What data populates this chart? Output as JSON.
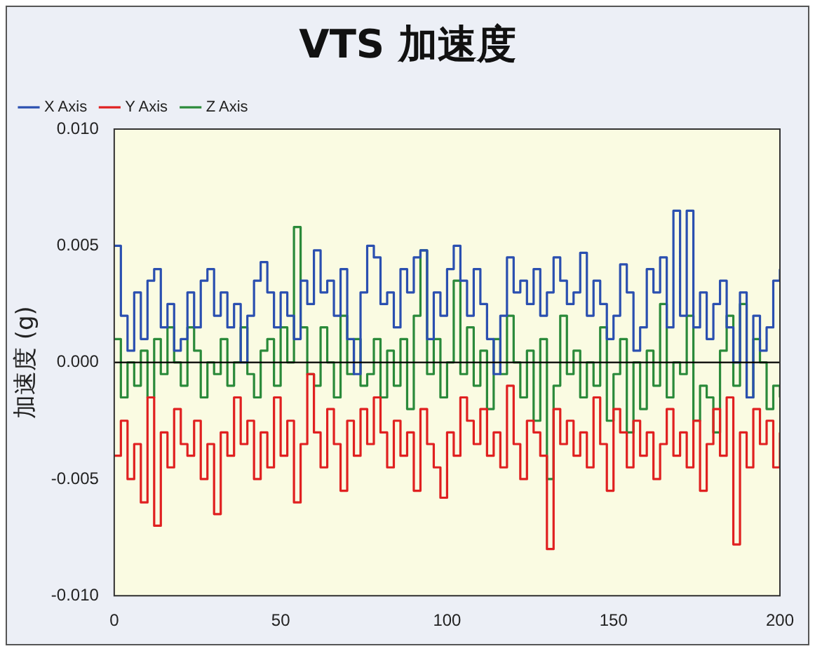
{
  "chart_data": {
    "type": "step",
    "title": "VTS 加速度",
    "ylabel": "加速度 (g)",
    "x": [
      0,
      2,
      4,
      6,
      8,
      10,
      12,
      14,
      16,
      18,
      20,
      22,
      24,
      26,
      28,
      30,
      32,
      34,
      36,
      38,
      40,
      42,
      44,
      46,
      48,
      50,
      52,
      54,
      56,
      58,
      60,
      62,
      64,
      66,
      68,
      70,
      72,
      74,
      76,
      78,
      80,
      82,
      84,
      86,
      88,
      90,
      92,
      94,
      96,
      98,
      100,
      102,
      104,
      106,
      108,
      110,
      112,
      114,
      116,
      118,
      120,
      122,
      124,
      126,
      128,
      130,
      132,
      134,
      136,
      138,
      140,
      142,
      144,
      146,
      148,
      150,
      152,
      154,
      156,
      158,
      160,
      162,
      164,
      166,
      168,
      170,
      172,
      174,
      176,
      178,
      180,
      182,
      184,
      186,
      188,
      190,
      192,
      194,
      196,
      198,
      200
    ],
    "series": [
      {
        "name": "X Axis",
        "color": "#2a4fb0",
        "values": [
          0.005,
          0.002,
          0.0005,
          0.003,
          0.001,
          0.0035,
          0.004,
          0.0015,
          0.0025,
          0.0005,
          0.001,
          0.003,
          0.0015,
          0.0035,
          0.004,
          0.002,
          0.003,
          0.0015,
          0.0025,
          0,
          0.002,
          0.0035,
          0.0043,
          0.003,
          0.0015,
          0.003,
          0.002,
          0.001,
          0.0035,
          0.0025,
          0.0048,
          0.003,
          0.0035,
          0.002,
          0.004,
          0.001,
          -0.0005,
          0.003,
          0.005,
          0.0045,
          0.0025,
          0.003,
          0.0015,
          0.004,
          0.003,
          0.0045,
          0.0048,
          0.001,
          0.003,
          0.002,
          0.004,
          0.005,
          0.0035,
          0.002,
          0.004,
          0.0025,
          0.001,
          -0.0005,
          0.002,
          0.0045,
          0.003,
          0.0035,
          0.0025,
          0.004,
          0.002,
          0.003,
          0.0045,
          0.0035,
          0.0025,
          0.003,
          0.0047,
          0.002,
          0.0035,
          0.0025,
          0.001,
          0.002,
          0.0042,
          0.003,
          0.0005,
          0.0015,
          0.004,
          0.003,
          0.0045,
          0.0015,
          0.0065,
          0.002,
          0.0065,
          0.0015,
          0.003,
          0.001,
          0.0025,
          0.0035,
          0.0015,
          0,
          0.003,
          -0.0015,
          0.002,
          0.0005,
          0.0015,
          0.0035,
          0.004
        ]
      },
      {
        "name": "Y Axis",
        "color": "#e02020",
        "values": [
          -0.004,
          -0.0025,
          -0.005,
          -0.0035,
          -0.006,
          -0.0015,
          -0.007,
          -0.003,
          -0.0045,
          -0.002,
          -0.0035,
          -0.004,
          -0.0025,
          -0.005,
          -0.0035,
          -0.0065,
          -0.003,
          -0.004,
          -0.0015,
          -0.0035,
          -0.0025,
          -0.005,
          -0.003,
          -0.0045,
          -0.0015,
          -0.004,
          -0.0025,
          -0.006,
          -0.0035,
          -0.0005,
          -0.003,
          -0.0045,
          -0.002,
          -0.0035,
          -0.0055,
          -0.0025,
          -0.004,
          -0.002,
          -0.0035,
          -0.0015,
          -0.003,
          -0.0045,
          -0.0025,
          -0.004,
          -0.003,
          -0.0055,
          -0.002,
          -0.0035,
          -0.0045,
          -0.0058,
          -0.003,
          -0.004,
          -0.0015,
          -0.0025,
          -0.0035,
          -0.002,
          -0.004,
          -0.003,
          -0.0045,
          -0.001,
          -0.0035,
          -0.005,
          -0.0025,
          -0.003,
          -0.004,
          -0.008,
          -0.002,
          -0.0035,
          -0.0025,
          -0.004,
          -0.003,
          -0.0045,
          -0.0015,
          -0.0035,
          -0.0055,
          -0.002,
          -0.003,
          -0.0045,
          -0.0025,
          -0.004,
          -0.003,
          -0.005,
          -0.0035,
          -0.002,
          -0.004,
          -0.003,
          -0.0045,
          -0.0025,
          -0.0055,
          -0.0035,
          -0.002,
          -0.004,
          -0.0015,
          -0.0078,
          -0.003,
          -0.0045,
          -0.002,
          -0.0035,
          -0.0025,
          -0.0045,
          -0.003
        ]
      },
      {
        "name": "Z Axis",
        "color": "#2a8a3a",
        "values": [
          0.001,
          -0.0015,
          0,
          -0.001,
          0.0005,
          -0.0015,
          0.001,
          -0.0005,
          0.0015,
          0,
          -0.001,
          0.0015,
          0.0005,
          -0.0015,
          0,
          -0.0005,
          0.001,
          -0.001,
          0,
          0.0015,
          -0.0005,
          -0.0015,
          0.0005,
          0.001,
          -0.001,
          0.0015,
          0,
          0.0058,
          0.0015,
          -0.0005,
          -0.001,
          0.0015,
          0,
          -0.0015,
          0.002,
          -0.0005,
          0.001,
          -0.001,
          -0.0005,
          0.001,
          -0.0015,
          0.0005,
          -0.001,
          0.001,
          -0.002,
          0.002,
          0.0048,
          -0.0005,
          0.001,
          -0.0015,
          0,
          0.0035,
          -0.0005,
          0.0015,
          -0.001,
          0.0005,
          -0.002,
          0.001,
          -0.0005,
          0.002,
          0,
          -0.0015,
          0.0005,
          -0.0025,
          0.001,
          -0.005,
          -0.001,
          0.002,
          -0.0005,
          0.0005,
          -0.0015,
          0,
          -0.001,
          0.0015,
          -0.0025,
          -0.0005,
          0.001,
          -0.003,
          0,
          -0.002,
          0.0005,
          -0.001,
          0.0025,
          -0.0015,
          0,
          -0.0005,
          0.002,
          -0.0025,
          -0.001,
          -0.0015,
          -0.003,
          0.0005,
          0.002,
          -0.001,
          0.0025,
          -0.0015,
          0.001,
          0,
          -0.002,
          -0.001,
          -0.0015
        ]
      }
    ],
    "xlim": [
      0,
      200
    ],
    "xticks": [
      0,
      50,
      100,
      150,
      200
    ],
    "ylim": [
      -0.01,
      0.01
    ],
    "yticks": [
      {
        "value": -0.01,
        "label": "-0.010"
      },
      {
        "value": -0.005,
        "label": "-0.005"
      },
      {
        "value": 0,
        "label": "0.000"
      },
      {
        "value": 0.005,
        "label": "0.005"
      },
      {
        "value": 0.01,
        "label": "0.010"
      }
    ],
    "ref_lines": [
      {
        "axis": "y",
        "value": 0,
        "color": "#000000"
      }
    ],
    "grid": false,
    "legend": "top left"
  }
}
